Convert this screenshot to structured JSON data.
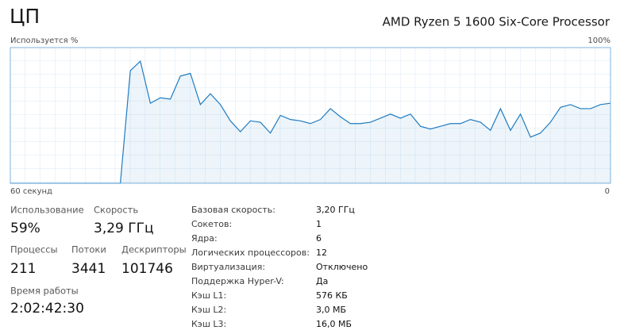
{
  "header": {
    "title": "ЦП",
    "processor": "AMD Ryzen 5 1600 Six-Core Processor"
  },
  "chart_data": {
    "type": "line",
    "y_label": "Используется %",
    "x": [
      60,
      59,
      58,
      57,
      56,
      55,
      54,
      53,
      52,
      51,
      50,
      49,
      48,
      47,
      46,
      45,
      44,
      43,
      42,
      41,
      40,
      39,
      38,
      37,
      36,
      35,
      34,
      33,
      32,
      31,
      30,
      29,
      28,
      27,
      26,
      25,
      24,
      23,
      22,
      21,
      20,
      19,
      18,
      17,
      16,
      15,
      14,
      13,
      12,
      11,
      10,
      9,
      8,
      7,
      6,
      5,
      4,
      3,
      2,
      1,
      0
    ],
    "values": [
      0,
      0,
      0,
      0,
      0,
      0,
      0,
      0,
      0,
      0,
      0,
      0,
      83,
      90,
      59,
      63,
      62,
      79,
      81,
      58,
      66,
      58,
      46,
      38,
      46,
      45,
      37,
      50,
      47,
      46,
      44,
      47,
      55,
      49,
      44,
      44,
      45,
      48,
      51,
      48,
      51,
      42,
      40,
      42,
      44,
      44,
      47,
      45,
      39,
      55,
      39,
      51,
      34,
      37,
      45,
      56,
      58,
      55,
      55,
      58,
      59
    ],
    "color": "#1f7bc1",
    "ylim": [
      0,
      100
    ],
    "yticks": [
      {
        "value": 100,
        "label": "100%"
      }
    ],
    "xlim": [
      60,
      0
    ],
    "xticks": [
      {
        "value": 60,
        "label": "60 секунд"
      },
      0
    ]
  },
  "stats": {
    "utilization": {
      "label": "Использование",
      "value": "59%"
    },
    "speed": {
      "label": "Скорость",
      "value": "3,29 ГГц"
    },
    "processes": {
      "label": "Процессы",
      "value": "211"
    },
    "threads": {
      "label": "Потоки",
      "value": "3441"
    },
    "handles": {
      "label": "Дескрипторы",
      "value": "101746"
    },
    "uptime": {
      "label": "Время работы",
      "value": "2:02:42:30"
    }
  },
  "details": [
    [
      "Базовая скорость:",
      "3,20 ГГц"
    ],
    [
      "Сокетов:",
      "1"
    ],
    [
      "Ядра:",
      "6"
    ],
    [
      "Логических процессоров:",
      "12"
    ],
    [
      "Виртуализация:",
      "Отключено"
    ],
    [
      "Поддержка Hyper-V:",
      "Да"
    ],
    [
      "Кэш L1:",
      "576 КБ"
    ],
    [
      "Кэш L2:",
      "3,0 МБ"
    ],
    [
      "Кэш L3:",
      "16,0 МБ"
    ]
  ]
}
